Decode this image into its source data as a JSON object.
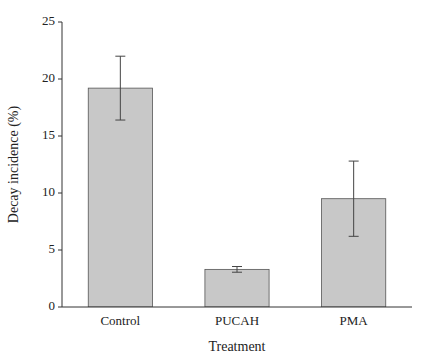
{
  "chart_data": {
    "type": "bar",
    "xlabel": "Treatment",
    "ylabel": "Decay incidence (%)",
    "categories": [
      "Control",
      "PUCAH",
      "PMA"
    ],
    "values": [
      19.2,
      3.3,
      9.5
    ],
    "errors": [
      2.8,
      0.25,
      3.3
    ],
    "color": "#c8c8c8",
    "ylim": [
      0,
      25
    ],
    "yticks": [
      0,
      5,
      10,
      15,
      20,
      25
    ],
    "grid": false
  }
}
